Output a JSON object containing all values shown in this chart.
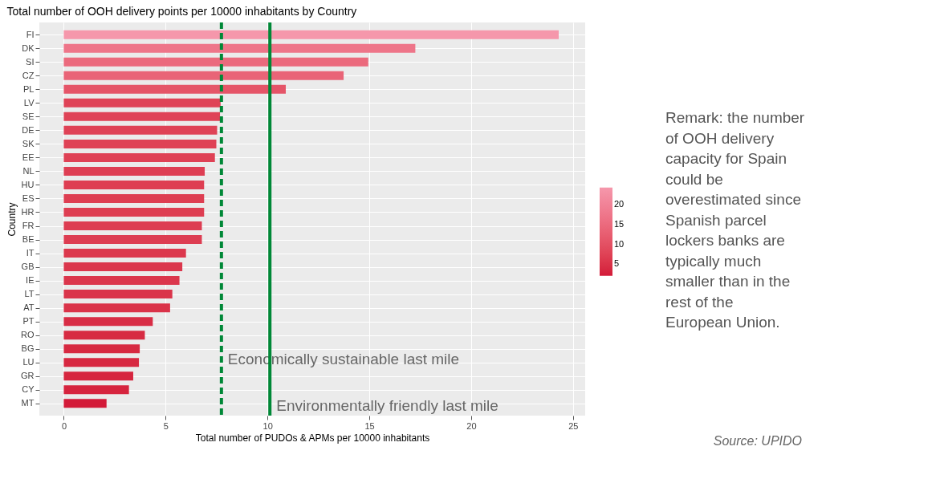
{
  "chart_data": {
    "type": "bar",
    "orientation": "horizontal",
    "title": "Total number of OOH delivery points per 10000 inhabitants by Country",
    "xlabel": "Total number of PUDOs & APMs per 10000 inhabitants",
    "ylabel": "Country",
    "categories": [
      "FI",
      "DK",
      "SI",
      "CZ",
      "PL",
      "LV",
      "SE",
      "DE",
      "SK",
      "EE",
      "NL",
      "HU",
      "ES",
      "HR",
      "FR",
      "BE",
      "IT",
      "GB",
      "IE",
      "LT",
      "AT",
      "PT",
      "RO",
      "BG",
      "LU",
      "GR",
      "CY",
      "MT"
    ],
    "values": [
      24.3,
      17.26,
      14.95,
      13.74,
      10.9,
      7.7,
      7.67,
      7.53,
      7.49,
      7.42,
      6.92,
      6.89,
      6.89,
      6.89,
      6.78,
      6.78,
      6.0,
      5.82,
      5.68,
      5.33,
      5.22,
      4.37,
      3.98,
      3.73,
      3.69,
      3.41,
      3.2,
      2.1
    ],
    "colors": [
      "#f597ab",
      "#ea6f87",
      "#e7627b",
      "#e55c74",
      "#e04c66",
      "#dc3a55",
      "#dc3a55",
      "#dc3954",
      "#dc3953",
      "#db3853",
      "#da3551",
      "#da3551",
      "#da3551",
      "#da3551",
      "#da3450",
      "#da3450",
      "#d9304c",
      "#d92f4b",
      "#d82e4a",
      "#d82c49",
      "#d82c48",
      "#d62744",
      "#d62542",
      "#d52341",
      "#d52341",
      "#d5213f",
      "#d5203e",
      "#d31a38"
    ],
    "xlim": [
      -1.2,
      25.6
    ],
    "xticks": [
      0,
      5,
      10,
      15,
      20,
      25
    ],
    "clim": [
      2.1,
      24.3
    ],
    "cticks": [
      5,
      10,
      15,
      20
    ],
    "grid": true,
    "legend": "right",
    "ref_lines": [
      {
        "axis": "x",
        "value": 7.74,
        "label": "Economically sustainable last mile",
        "color": "#008837",
        "line_style": "dashed"
      },
      {
        "axis": "x",
        "value": 10.12,
        "label": "Environmentally friendly last mile",
        "color": "#008837",
        "line_style": "solid"
      }
    ],
    "annotations": [
      "Remark: the number of OOH delivery capacity for Spain could be overestimated since Spanish parcel lockers banks are typically much smaller than in the rest of the European Union.",
      "Source: UPIDO"
    ]
  }
}
